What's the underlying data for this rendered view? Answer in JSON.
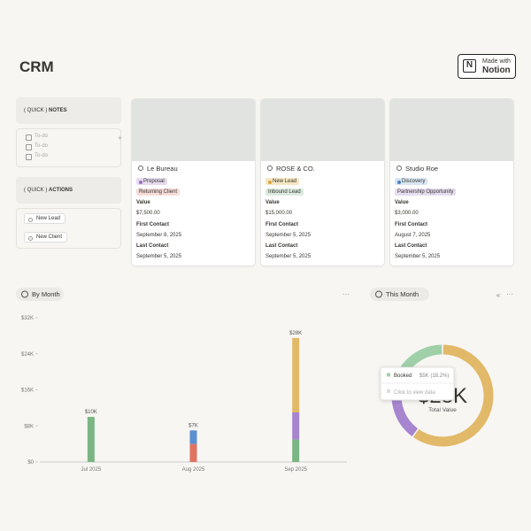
{
  "header": {
    "title": "CRM",
    "badge_top": "Made with",
    "badge_bottom": "Notion"
  },
  "notes": {
    "title_prefix": "( QUICK )",
    "title": "NOTES",
    "items": [
      "To-do",
      "To-do",
      "To-do"
    ],
    "add": "+"
  },
  "actions": {
    "title_prefix": "( QUICK )",
    "title": "ACTIONS",
    "buttons": [
      "New Lead",
      "New Client"
    ]
  },
  "fields": [
    "Value",
    "First Contact",
    "Last Contact"
  ],
  "cards": [
    {
      "name": "Le Bureau",
      "status": "Proposal",
      "status_color": "#e6dcef",
      "status_dot": "#9b6fc4",
      "type": "Returning Client",
      "type_color": "#f6dcd8",
      "value": "$7,500.00",
      "first_contact": "September 8, 2025",
      "last_contact": "September 5, 2025"
    },
    {
      "name": "ROSE & CO.",
      "status": "New Lead",
      "status_color": "#f6e7c3",
      "status_dot": "#d9a73a",
      "type": "Inbound Lead",
      "type_color": "#dbeadf",
      "value": "$15,000.00",
      "first_contact": "September 5, 2025",
      "last_contact": "September 5, 2025"
    },
    {
      "name": "Studio Roe",
      "status": "Discovery",
      "status_color": "#d8e6f3",
      "status_dot": "#4b82c3",
      "type": "Partnership Opportunity",
      "type_color": "#e6dcef",
      "value": "$3,000.00",
      "first_contact": "August 7, 2025",
      "last_contact": "September 5, 2025"
    }
  ],
  "chart_data": [
    {
      "type": "bar",
      "stacked": true,
      "title": "By Month",
      "menu": "···",
      "categories": [
        "Jul 2025",
        "Aug 2025",
        "Sep 2025"
      ],
      "series": [
        {
          "color": "#7ab583",
          "values": [
            10000,
            null,
            5000
          ]
        },
        {
          "color": "#e0735f",
          "values": [
            null,
            4000,
            null
          ]
        },
        {
          "color": "#5b8fd1",
          "values": [
            null,
            3000,
            null
          ]
        },
        {
          "color": "#a785cf",
          "values": [
            null,
            null,
            6000
          ]
        },
        {
          "color": "#e2b968",
          "values": [
            null,
            null,
            16500
          ]
        }
      ],
      "totals": {
        "values": [
          10000,
          7000,
          27500
        ],
        "value_labels": [
          "$10K",
          "$7K",
          "$28K"
        ]
      },
      "ylim": [
        0,
        32000
      ],
      "yticks": [
        {
          "value": 0,
          "label": "$0"
        },
        {
          "value": 8000,
          "label": "$8K"
        },
        {
          "value": 16000,
          "label": "$16K"
        },
        {
          "value": 24000,
          "label": "$24K"
        },
        {
          "value": 32000,
          "label": "$32K"
        }
      ],
      "grid": false
    },
    {
      "type": "donut",
      "title": "This Month",
      "menu": "···",
      "collapse": "«",
      "values": [
        16500,
        6000,
        5000
      ],
      "colors": [
        "#e2b968",
        "#a785cf",
        "#9fd0a8"
      ],
      "center_label": "$28K",
      "center_sub": "Total Value",
      "tooltip": {
        "name": "Booked",
        "text": "$5K (18.2%)",
        "hint": "Click to view data"
      }
    }
  ]
}
